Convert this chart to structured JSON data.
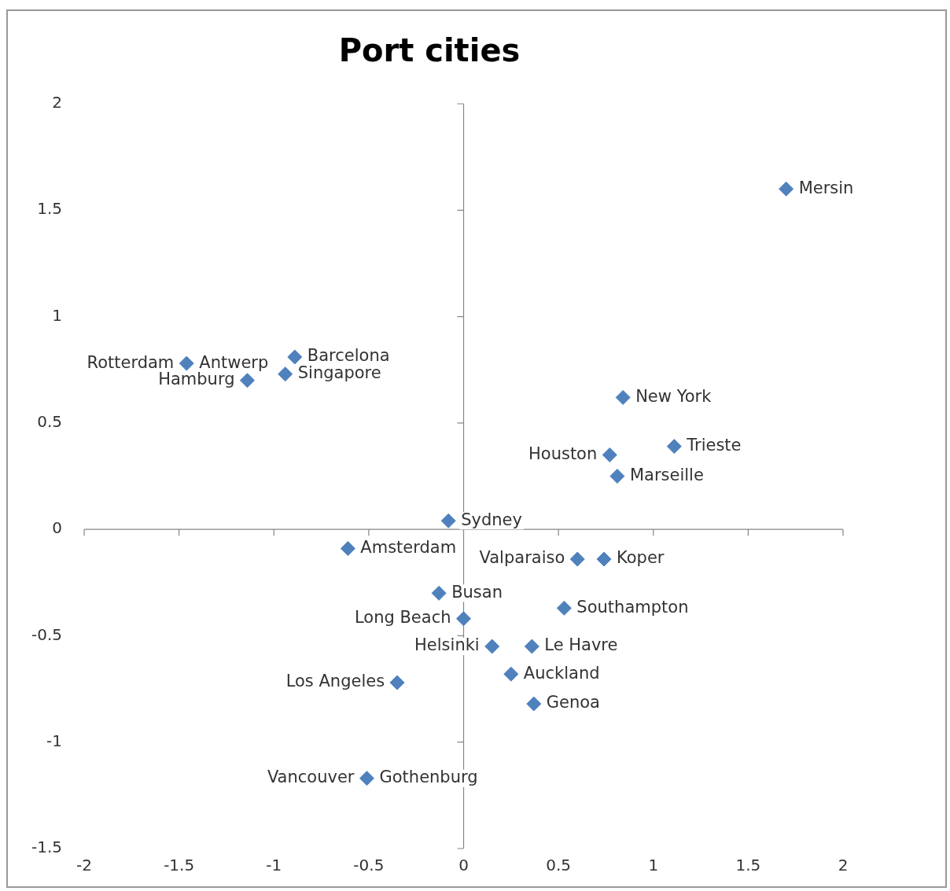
{
  "chart_data": {
    "type": "scatter",
    "title": "Port cities",
    "color": "#4f81bd",
    "marker": "diamond",
    "x": [
      1.7,
      -1.46,
      null,
      -0.89,
      -0.94,
      -1.14,
      0.84,
      1.11,
      0.77,
      0.81,
      -0.08,
      -0.61,
      0.6,
      0.74,
      -0.13,
      0.53,
      0.0,
      0.15,
      0.36,
      0.25,
      -0.35,
      0.37,
      -0.51,
      null
    ],
    "values": [
      1.6,
      0.78,
      null,
      0.81,
      0.73,
      0.7,
      0.62,
      0.39,
      0.35,
      0.25,
      0.04,
      -0.09,
      -0.14,
      -0.14,
      -0.3,
      -0.37,
      -0.42,
      -0.55,
      -0.55,
      -0.68,
      -0.72,
      -0.82,
      -1.17,
      null
    ],
    "xlim": [
      -2,
      2
    ],
    "ylim": [
      -1.5,
      2
    ],
    "xticks": [
      -2,
      -1.5,
      -1,
      -0.5,
      0,
      0.5,
      1,
      1.5,
      2
    ],
    "yticks": [
      -1.5,
      -1,
      -0.5,
      0,
      0.5,
      1,
      1.5,
      2
    ],
    "annotations": [
      {
        "text": "Mersin",
        "x": 1.7,
        "y": 1.6
      },
      {
        "text": "Antwerp",
        "x": -1.46,
        "y": 0.78
      },
      {
        "text": "Rotterdam",
        "x": -1.46,
        "y": 0.78
      },
      {
        "text": "Barcelona",
        "x": -0.89,
        "y": 0.81
      },
      {
        "text": "Singapore",
        "x": -0.94,
        "y": 0.73
      },
      {
        "text": "Hamburg",
        "x": -1.14,
        "y": 0.7
      },
      {
        "text": "New York",
        "x": 0.84,
        "y": 0.62
      },
      {
        "text": "Trieste",
        "x": 1.11,
        "y": 0.39
      },
      {
        "text": "Houston",
        "x": 0.77,
        "y": 0.35
      },
      {
        "text": "Marseille",
        "x": 0.81,
        "y": 0.25
      },
      {
        "text": "Sydney",
        "x": -0.08,
        "y": 0.04
      },
      {
        "text": "Amsterdam",
        "x": -0.61,
        "y": -0.09
      },
      {
        "text": "Valparaiso",
        "x": 0.6,
        "y": -0.14
      },
      {
        "text": "Koper",
        "x": 0.74,
        "y": -0.14
      },
      {
        "text": "Busan",
        "x": -0.13,
        "y": -0.3
      },
      {
        "text": "Southampton",
        "x": 0.53,
        "y": -0.37
      },
      {
        "text": "Long Beach",
        "x": 0.0,
        "y": -0.42
      },
      {
        "text": "Helsinki",
        "x": 0.15,
        "y": -0.55
      },
      {
        "text": "Le Havre",
        "x": 0.36,
        "y": -0.55
      },
      {
        "text": "Auckland",
        "x": 0.25,
        "y": -0.68
      },
      {
        "text": "Los Angeles",
        "x": -0.35,
        "y": -0.72
      },
      {
        "text": "Genoa",
        "x": 0.37,
        "y": -0.82
      },
      {
        "text": "Gothenburg",
        "x": -0.51,
        "y": -1.17
      },
      {
        "text": "Vancouver",
        "x": -0.51,
        "y": -1.17
      }
    ]
  }
}
